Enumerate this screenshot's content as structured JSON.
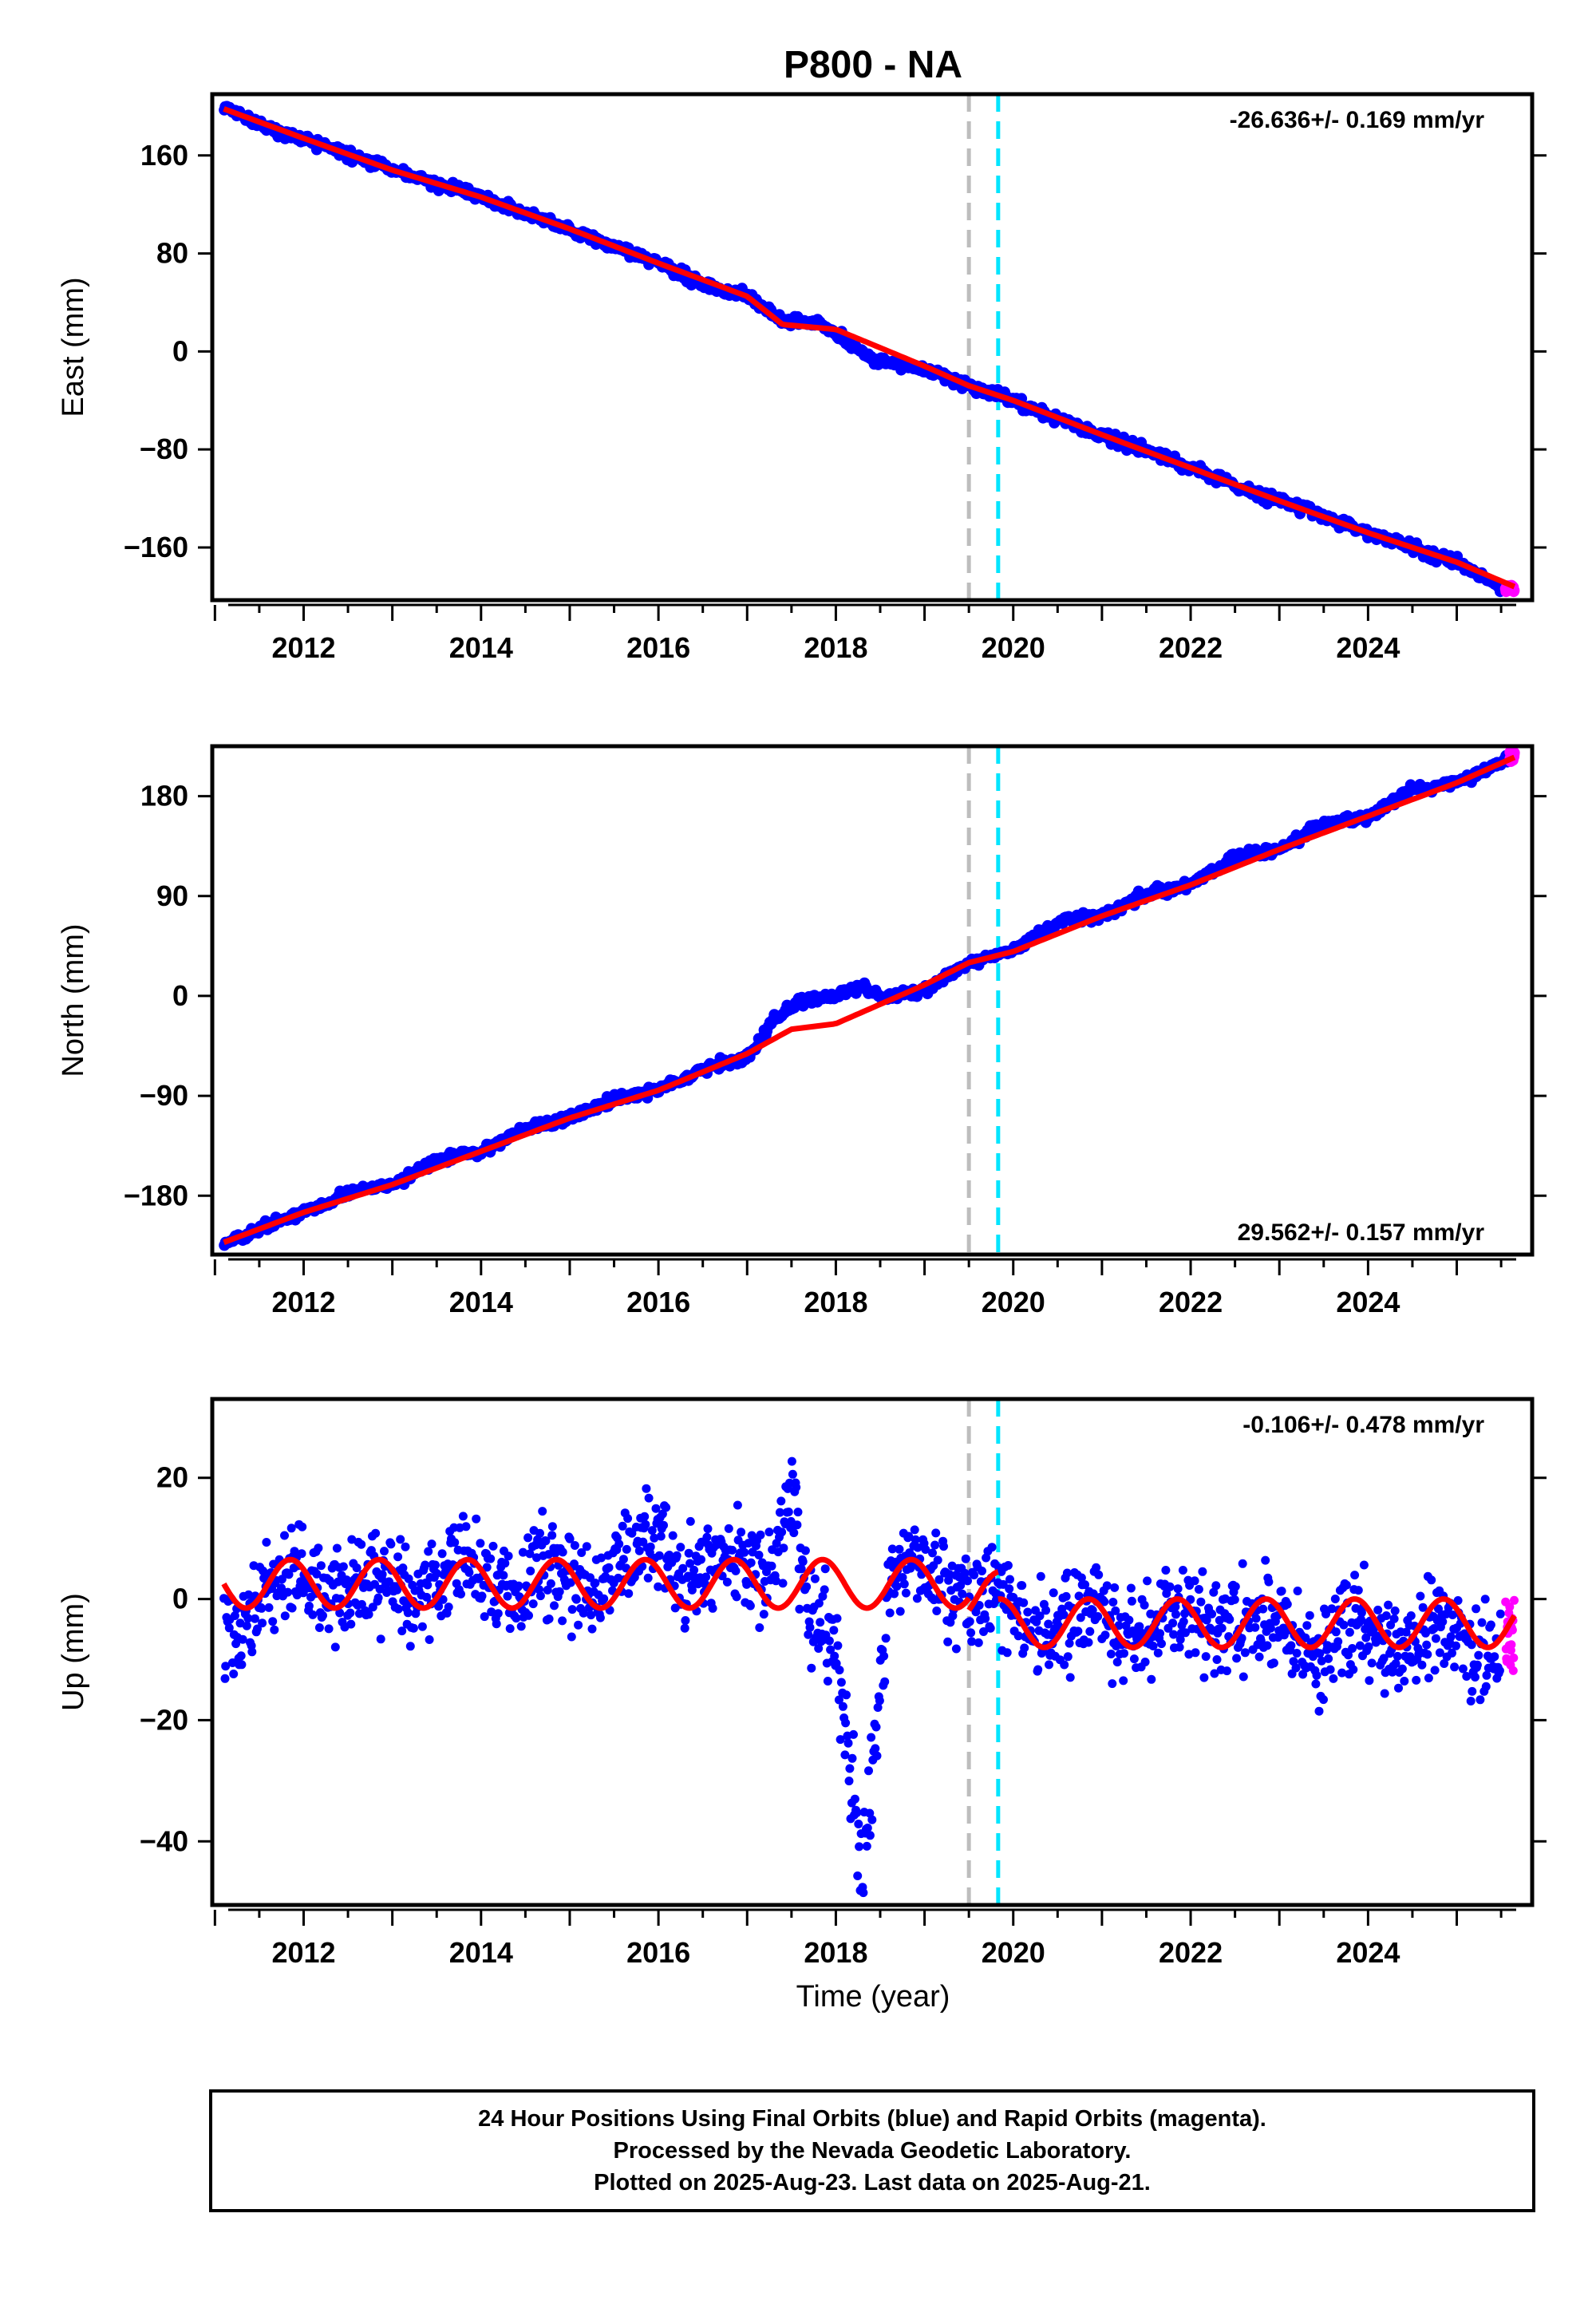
{
  "title": "P800 - NA",
  "xlabel": "Time (year)",
  "x_ticks": [
    2012,
    2014,
    2016,
    2018,
    2020,
    2022,
    2024
  ],
  "colors": {
    "final_orbits": "#0000ff",
    "rapid_orbits": "#ff00ff",
    "model_fit": "#ff0000",
    "event_gray": "#bdbdbd",
    "event_cyan": "#00e5ff"
  },
  "footer": {
    "line1": "24 Hour Positions Using Final Orbits (blue) and Rapid Orbits (magenta).",
    "line2": "Processed by the Nevada Geodetic Laboratory.",
    "line3": "Plotted on 2025-Aug-23. Last data on 2025-Aug-21."
  },
  "chart_data": [
    {
      "type": "scatter",
      "component": "East",
      "ylabel": "East (mm)",
      "rate_label": "-26.636+/- 0.169 mm/yr",
      "rate_position": "top-right",
      "xlim": [
        2010.97,
        2025.85
      ],
      "ylim": [
        -203,
        210
      ],
      "y_ticks": [
        -160,
        -80,
        0,
        80,
        160
      ],
      "vertical_lines": [
        {
          "x": 2019.5,
          "color": "gray",
          "style": "dashed"
        },
        {
          "x": 2019.83,
          "color": "cyan",
          "style": "dashed"
        }
      ],
      "series": [
        {
          "name": "Final Orbits",
          "color": "blue",
          "x": [
            2011.1,
            2011.5,
            2012.0,
            2012.5,
            2013.0,
            2013.5,
            2014.0,
            2014.5,
            2015.0,
            2015.5,
            2016.0,
            2016.5,
            2017.0,
            2017.4,
            2017.8,
            2018.2,
            2018.4,
            2018.6,
            2019.0,
            2019.5,
            2020.0,
            2020.5,
            2021.0,
            2021.5,
            2022.0,
            2022.5,
            2023.0,
            2023.5,
            2024.0,
            2024.5,
            2025.0,
            2025.5
          ],
          "y": [
            200,
            185,
            174,
            160,
            148,
            137,
            126,
            112,
            100,
            85,
            72,
            55,
            45,
            25,
            22,
            5,
            -5,
            -8,
            -15,
            -28,
            -40,
            -55,
            -68,
            -80,
            -95,
            -110,
            -122,
            -135,
            -148,
            -160,
            -172,
            -192
          ]
        },
        {
          "name": "Rapid Orbits",
          "color": "magenta",
          "x": [
            2025.55,
            2025.6,
            2025.65
          ],
          "y": [
            -193,
            -194,
            -193
          ]
        },
        {
          "name": "Model Fit",
          "color": "red",
          "x": [
            2011.1,
            2012.0,
            2013.0,
            2014.0,
            2015.0,
            2016.0,
            2017.0,
            2017.4,
            2018.0,
            2019.0,
            2019.5,
            2020.0,
            2021.0,
            2022.0,
            2023.0,
            2024.0,
            2025.0,
            2025.65
          ],
          "y": [
            198,
            174,
            148,
            126,
            100,
            72,
            45,
            22,
            18,
            -12,
            -28,
            -40,
            -68,
            -95,
            -122,
            -148,
            -172,
            -192
          ]
        }
      ]
    },
    {
      "type": "scatter",
      "component": "North",
      "ylabel": "North (mm)",
      "rate_label": "29.562+/- 0.157 mm/yr",
      "rate_position": "bottom-right",
      "xlim": [
        2010.97,
        2025.85
      ],
      "ylim": [
        -233,
        225
      ],
      "y_ticks": [
        -180,
        -90,
        0,
        90,
        180
      ],
      "vertical_lines": [
        {
          "x": 2019.5,
          "color": "gray",
          "style": "dashed"
        },
        {
          "x": 2019.83,
          "color": "cyan",
          "style": "dashed"
        }
      ],
      "series": [
        {
          "name": "Final Orbits",
          "color": "blue",
          "x": [
            2011.1,
            2011.5,
            2012.0,
            2012.5,
            2013.0,
            2013.5,
            2014.0,
            2014.5,
            2015.0,
            2015.5,
            2016.0,
            2016.5,
            2017.0,
            2017.3,
            2017.6,
            2018.0,
            2018.3,
            2018.5,
            2019.0,
            2019.5,
            2020.0,
            2020.5,
            2021.0,
            2021.5,
            2022.0,
            2022.5,
            2023.0,
            2023.5,
            2024.0,
            2024.5,
            2025.0,
            2025.6
          ],
          "y": [
            -222,
            -210,
            -195,
            -178,
            -170,
            -148,
            -140,
            -118,
            -110,
            -92,
            -85,
            -65,
            -55,
            -22,
            -5,
            0,
            10,
            -2,
            5,
            30,
            40,
            68,
            72,
            92,
            100,
            125,
            132,
            155,
            162,
            185,
            192,
            215
          ]
        },
        {
          "name": "Rapid Orbits",
          "color": "magenta",
          "x": [
            2025.6,
            2025.65
          ],
          "y": [
            216,
            217
          ]
        },
        {
          "name": "Model Fit",
          "color": "red",
          "x": [
            2011.1,
            2012.0,
            2013.0,
            2014.0,
            2015.0,
            2016.0,
            2017.0,
            2017.5,
            2018.0,
            2019.0,
            2019.5,
            2020.0,
            2021.0,
            2022.0,
            2023.0,
            2024.0,
            2025.0,
            2025.65
          ],
          "y": [
            -222,
            -195,
            -170,
            -140,
            -110,
            -85,
            -52,
            -30,
            -25,
            10,
            30,
            40,
            72,
            100,
            132,
            162,
            192,
            215
          ]
        }
      ]
    },
    {
      "type": "scatter",
      "component": "Up",
      "ylabel": "Up (mm)",
      "rate_label": "-0.106+/- 0.478 mm/yr",
      "rate_position": "top-right",
      "xlim": [
        2010.97,
        2025.85
      ],
      "ylim": [
        -50.5,
        33
      ],
      "y_ticks": [
        -40,
        -20,
        0,
        20
      ],
      "vertical_lines": [
        {
          "x": 2019.5,
          "color": "gray",
          "style": "dashed"
        },
        {
          "x": 2019.83,
          "color": "cyan",
          "style": "dashed"
        }
      ],
      "seasonal_fit": {
        "name": "Model Fit",
        "color": "red",
        "amplitude": 4,
        "period_years": 1.0,
        "phase_peak": 2011.85,
        "offsets": [
          {
            "from": 2010.97,
            "to": 2019.5,
            "mean": 2.5
          },
          {
            "from": 2019.5,
            "to": 2019.83,
            "mean": 0.5
          },
          {
            "from": 2019.83,
            "to": 2025.85,
            "mean": -4
          }
        ]
      },
      "series": [
        {
          "name": "Final Orbits",
          "color": "blue",
          "noise_sd": 4,
          "x": [
            2011.1,
            2011.5,
            2012.0,
            2012.5,
            2013.0,
            2013.5,
            2014.0,
            2014.5,
            2015.0,
            2015.5,
            2016.0,
            2016.5,
            2017.0,
            2017.3,
            2017.5,
            2017.7,
            2018.0,
            2018.2,
            2018.3,
            2018.6,
            2019.0,
            2019.5,
            2020.0,
            2020.5,
            2021.0,
            2021.5,
            2022.0,
            2022.5,
            2023.0,
            2023.5,
            2024.0,
            2024.5,
            2025.0,
            2025.5
          ],
          "y": [
            -5,
            1,
            2,
            3,
            1,
            4,
            3,
            5,
            2,
            6,
            8,
            5,
            4,
            8,
            20,
            -3,
            -10,
            -30,
            -45,
            2,
            4,
            2,
            -3,
            -4,
            -5,
            -4,
            -3,
            -3,
            -5,
            -6,
            -7,
            -6,
            -7,
            -8
          ]
        },
        {
          "name": "Rapid Orbits",
          "color": "magenta",
          "noise_sd": 3,
          "x": [
            2025.55,
            2025.6,
            2025.65
          ],
          "y": [
            -6,
            -5,
            -7
          ]
        }
      ]
    }
  ]
}
